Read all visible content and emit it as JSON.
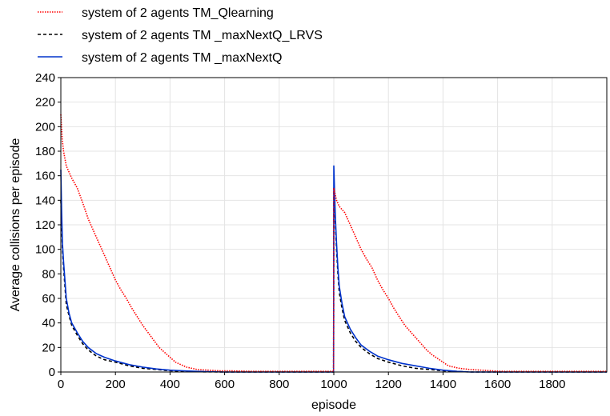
{
  "chart_data": {
    "type": "line",
    "title": "",
    "xlabel": "episode",
    "ylabel": "Average collisions per episode",
    "xlim": [
      0,
      2000
    ],
    "ylim": [
      0,
      240
    ],
    "x_ticks": [
      0,
      200,
      400,
      600,
      800,
      1000,
      1200,
      1400,
      1600,
      1800
    ],
    "y_ticks": [
      0,
      20,
      40,
      60,
      80,
      100,
      120,
      140,
      160,
      180,
      200,
      220,
      240
    ],
    "grid": true,
    "legend_position": "top-left",
    "series": [
      {
        "name": "system of 2 agents TM_Qlearning",
        "color": "#ff0000",
        "style": "dotted",
        "x": [
          0,
          5,
          10,
          20,
          40,
          60,
          80,
          100,
          120,
          140,
          160,
          180,
          200,
          220,
          240,
          260,
          280,
          300,
          320,
          340,
          360,
          380,
          400,
          420,
          440,
          460,
          480,
          500,
          540,
          580,
          620,
          700,
          800,
          900,
          999,
          1000,
          1005,
          1010,
          1020,
          1040,
          1060,
          1080,
          1100,
          1120,
          1140,
          1160,
          1180,
          1200,
          1220,
          1240,
          1260,
          1280,
          1300,
          1320,
          1340,
          1360,
          1380,
          1400,
          1420,
          1440,
          1460,
          1480,
          1500,
          1540,
          1580,
          1620,
          1700,
          1800,
          1900,
          2000
        ],
        "y": [
          210,
          190,
          180,
          168,
          158,
          150,
          138,
          125,
          115,
          105,
          95,
          85,
          75,
          67,
          60,
          52,
          45,
          38,
          32,
          26,
          20,
          16,
          12,
          8,
          6,
          4,
          3,
          2,
          1.5,
          1,
          1,
          0.5,
          0.5,
          0.5,
          0.5,
          150,
          145,
          140,
          135,
          130,
          120,
          110,
          100,
          92,
          85,
          75,
          67,
          60,
          52,
          45,
          38,
          33,
          28,
          23,
          18,
          14,
          11,
          8,
          5,
          4,
          3,
          2.5,
          2,
          1.5,
          1,
          0.5,
          0.5,
          0.5,
          0.5,
          0.5
        ]
      },
      {
        "name": "system of 2 agents TM _maxNextQ_LRVS",
        "color": "#000000",
        "style": "dashed",
        "x": [
          0,
          3,
          6,
          10,
          15,
          20,
          30,
          40,
          60,
          80,
          100,
          130,
          160,
          200,
          250,
          300,
          350,
          400,
          450,
          500,
          600,
          700,
          800,
          900,
          999,
          1000,
          1003,
          1006,
          1010,
          1015,
          1020,
          1030,
          1040,
          1060,
          1080,
          1100,
          1130,
          1160,
          1200,
          1250,
          1300,
          1350,
          1400,
          1450,
          1500,
          1600,
          1700,
          1800,
          1900,
          2000
        ],
        "y": [
          140,
          120,
          100,
          85,
          70,
          55,
          46,
          38,
          30,
          23,
          18,
          13,
          10,
          8,
          5,
          3,
          2,
          1,
          0.5,
          0.2,
          0,
          0,
          0,
          0,
          0,
          150,
          135,
          120,
          100,
          80,
          65,
          52,
          42,
          32,
          25,
          20,
          15,
          11,
          8,
          5,
          3,
          2,
          1,
          0.5,
          0,
          0,
          0,
          0,
          0,
          0
        ]
      },
      {
        "name": "system of 2 agents TM _maxNextQ",
        "color": "#0033cc",
        "style": "solid",
        "x": [
          0,
          3,
          6,
          10,
          15,
          20,
          30,
          40,
          60,
          80,
          100,
          130,
          160,
          200,
          250,
          300,
          350,
          400,
          450,
          500,
          600,
          700,
          800,
          900,
          999,
          1000,
          1003,
          1006,
          1010,
          1015,
          1020,
          1030,
          1040,
          1060,
          1080,
          1100,
          1130,
          1160,
          1200,
          1250,
          1300,
          1350,
          1400,
          1450,
          1500,
          1600,
          1700,
          1800,
          1900,
          2000
        ],
        "y": [
          165,
          130,
          105,
          90,
          75,
          60,
          48,
          40,
          32,
          25,
          20,
          15,
          12,
          9,
          6,
          4,
          2.5,
          1.5,
          1,
          0.5,
          0,
          0,
          0,
          0,
          0,
          168,
          145,
          125,
          105,
          85,
          70,
          56,
          45,
          35,
          28,
          22,
          17,
          13,
          10,
          7,
          5,
          3,
          1.5,
          0.5,
          0,
          0,
          0,
          0,
          0,
          0
        ]
      }
    ]
  }
}
